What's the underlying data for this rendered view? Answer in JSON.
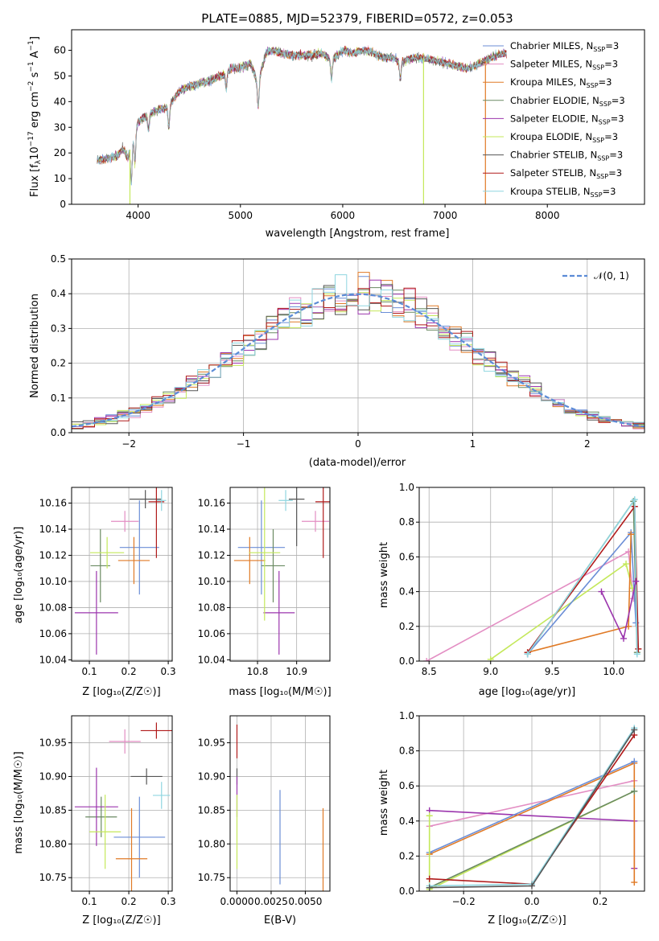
{
  "chart_data": [
    {
      "type": "line",
      "title": "PLATE=0885, MJD=52379, FIBERID=0572, z=0.053",
      "xlabel": "wavelength [Angstrom, rest frame]",
      "ylabel_parts": [
        "Flux [f",
        "λ",
        "10",
        "−17",
        " erg cm",
        "−2",
        " s",
        "−1",
        " A",
        "−1",
        "]"
      ],
      "xlim": [
        3350,
        8950
      ],
      "ylim": [
        0,
        68
      ],
      "xticks": [
        4000,
        5000,
        6000,
        7000,
        8000
      ],
      "yticks": [
        0,
        10,
        20,
        30,
        40,
        50,
        60
      ],
      "grid": false,
      "legend_position": "right",
      "spectrum_range": [
        3600,
        7600
      ],
      "continuum": [
        [
          3600,
          17
        ],
        [
          3700,
          18
        ],
        [
          3800,
          19
        ],
        [
          3850,
          22
        ],
        [
          3900,
          18
        ],
        [
          3960,
          28
        ],
        [
          4000,
          32
        ],
        [
          4100,
          35
        ],
        [
          4200,
          37
        ],
        [
          4300,
          38
        ],
        [
          4400,
          44
        ],
        [
          4500,
          46
        ],
        [
          4600,
          47
        ],
        [
          4700,
          48
        ],
        [
          4800,
          50
        ],
        [
          4860,
          51
        ],
        [
          4900,
          53
        ],
        [
          5000,
          53
        ],
        [
          5100,
          55
        ],
        [
          5170,
          47
        ],
        [
          5250,
          59
        ],
        [
          5300,
          60
        ],
        [
          5400,
          59
        ],
        [
          5500,
          58
        ],
        [
          5600,
          58
        ],
        [
          5700,
          58
        ],
        [
          5800,
          59
        ],
        [
          5890,
          56
        ],
        [
          6000,
          60
        ],
        [
          6100,
          59
        ],
        [
          6200,
          60
        ],
        [
          6300,
          59
        ],
        [
          6400,
          57
        ],
        [
          6500,
          57
        ],
        [
          6560,
          55
        ],
        [
          6600,
          56
        ],
        [
          6700,
          57
        ],
        [
          6800,
          57
        ],
        [
          6900,
          56
        ],
        [
          7000,
          55
        ],
        [
          7100,
          54
        ],
        [
          7200,
          53
        ],
        [
          7300,
          54
        ],
        [
          7400,
          56
        ],
        [
          7500,
          58
        ],
        [
          7600,
          59
        ]
      ],
      "absorptions": [
        [
          3934,
          15
        ],
        [
          3969,
          13
        ],
        [
          4101,
          6
        ],
        [
          4300,
          8
        ],
        [
          4861,
          6
        ],
        [
          5175,
          9
        ],
        [
          5890,
          7
        ],
        [
          6563,
          6
        ]
      ],
      "drops": [
        [
          3920,
          0
        ],
        [
          6790,
          0
        ],
        [
          7395,
          0
        ]
      ],
      "series": [
        {
          "name_parts": [
            "Chabrier MILES, N",
            "SSP",
            "=3"
          ],
          "color": "#6b8ed6"
        },
        {
          "name_parts": [
            "Salpeter MILES, N",
            "SSP",
            "=3"
          ],
          "color": "#e38ec3"
        },
        {
          "name_parts": [
            "Kroupa MILES, N",
            "SSP",
            "=3"
          ],
          "color": "#e07a26"
        },
        {
          "name_parts": [
            "Chabrier ELODIE, N",
            "SSP",
            "=3"
          ],
          "color": "#6a8a62"
        },
        {
          "name_parts": [
            "Salpeter ELODIE, N",
            "SSP",
            "=3"
          ],
          "color": "#9b35ad"
        },
        {
          "name_parts": [
            "Kroupa ELODIE, N",
            "SSP",
            "=3"
          ],
          "color": "#c4e85a"
        },
        {
          "name_parts": [
            "Chabrier STELIB, N",
            "SSP",
            "=3"
          ],
          "color": "#555555"
        },
        {
          "name_parts": [
            "Salpeter STELIB, N",
            "SSP",
            "=3"
          ],
          "color": "#b01a1a"
        },
        {
          "name_parts": [
            "Kroupa STELIB, N",
            "SSP",
            "=3"
          ],
          "color": "#8fd6e0"
        }
      ]
    },
    {
      "type": "histogram",
      "xlabel": "(data-model)/error",
      "ylabel": "Normed distribution",
      "xlim": [
        -2.5,
        2.5
      ],
      "ylim": [
        0,
        0.5
      ],
      "xticks": [
        -2,
        -1,
        0,
        1,
        2
      ],
      "xtick_labels": [
        "−2",
        "−1",
        "0",
        "1",
        "2"
      ],
      "yticks": [
        0,
        0.1,
        0.2,
        0.3,
        0.4,
        0.5
      ],
      "ytick_labels": [
        "0.0",
        "0.1",
        "0.2",
        "0.3",
        "0.4",
        "0.5"
      ],
      "grid": true,
      "bin_width": 0.1,
      "reference_label": "𝒩(0, 1)",
      "reference_color": "#5b8bd6",
      "legend_position": "top-right"
    },
    {
      "type": "scatter",
      "xlabel": "Z [log₁₀(Z/Z☉)]",
      "ylabel": "age  [log₁₀(age/yr)]",
      "xlim": [
        0.055,
        0.31
      ],
      "ylim": [
        10.039,
        10.172
      ],
      "xticks": [
        0.1,
        0.2,
        0.3
      ],
      "xtick_labels": [
        "0.1",
        "0.2",
        "0.3"
      ],
      "yticks": [
        10.04,
        10.06,
        10.08,
        10.1,
        10.12,
        10.14,
        10.16
      ],
      "ytick_labels": [
        "10.04",
        "10.06",
        "10.08",
        "10.10",
        "10.12",
        "10.14",
        "10.16"
      ],
      "grid": true,
      "points": [
        {
          "x": 0.227,
          "y": 10.126,
          "xe": 0.05,
          "ye": 0.036,
          "color": "#6b8ed6"
        },
        {
          "x": 0.19,
          "y": 10.146,
          "xe": 0.035,
          "ye": 0.008,
          "color": "#e38ec3"
        },
        {
          "x": 0.213,
          "y": 10.116,
          "xe": 0.04,
          "ye": 0.018,
          "color": "#e07a26"
        },
        {
          "x": 0.128,
          "y": 10.112,
          "xe": 0.025,
          "ye": 0.028,
          "color": "#6a8a62"
        },
        {
          "x": 0.118,
          "y": 10.076,
          "xe": 0.055,
          "ye": 0.032,
          "color": "#9b35ad"
        },
        {
          "x": 0.145,
          "y": 10.122,
          "xe": 0.043,
          "ye": 0.012,
          "color": "#c4e85a"
        },
        {
          "x": 0.242,
          "y": 10.163,
          "xe": 0.04,
          "ye": 0.007,
          "color": "#555555"
        },
        {
          "x": 0.27,
          "y": 10.161,
          "xe": 0.02,
          "ye": 0.043,
          "color": "#b01a1a"
        },
        {
          "x": 0.283,
          "y": 10.162,
          "xe": 0.012,
          "ye": 0.008,
          "color": "#8fd6e0"
        }
      ]
    },
    {
      "type": "scatter",
      "xlabel": "mass [log₁₀(M/M☉)]",
      "xlim": [
        10.73,
        10.985
      ],
      "ylim": [
        10.039,
        10.172
      ],
      "xticks": [
        10.8,
        10.9
      ],
      "xtick_labels": [
        "10.8",
        "10.9"
      ],
      "yticks": [
        10.04,
        10.06,
        10.08,
        10.1,
        10.12,
        10.14,
        10.16
      ],
      "ytick_labels": [
        "10.04",
        "10.06",
        "10.08",
        "10.10",
        "10.12",
        "10.14",
        "10.16"
      ],
      "grid": true,
      "points": [
        {
          "x": 10.81,
          "y": 10.126,
          "xe": 0.06,
          "ye": 0.036,
          "color": "#6b8ed6"
        },
        {
          "x": 10.948,
          "y": 10.146,
          "xe": 0.035,
          "ye": 0.008,
          "color": "#e38ec3"
        },
        {
          "x": 10.78,
          "y": 10.116,
          "xe": 0.04,
          "ye": 0.018,
          "color": "#e07a26"
        },
        {
          "x": 10.84,
          "y": 10.112,
          "xe": 0.03,
          "ye": 0.028,
          "color": "#6a8a62"
        },
        {
          "x": 10.855,
          "y": 10.076,
          "xe": 0.04,
          "ye": 0.032,
          "color": "#9b35ad"
        },
        {
          "x": 10.818,
          "y": 10.122,
          "xe": 0.04,
          "ye": 0.052,
          "color": "#c4e85a"
        },
        {
          "x": 10.9,
          "y": 10.163,
          "xe": 0.02,
          "ye": 0.036,
          "color": "#555555"
        },
        {
          "x": 10.968,
          "y": 10.161,
          "xe": 0.02,
          "ye": 0.043,
          "color": "#b01a1a"
        },
        {
          "x": 10.872,
          "y": 10.162,
          "xe": 0.018,
          "ye": 0.008,
          "color": "#8fd6e0"
        }
      ]
    },
    {
      "type": "line",
      "xlabel": "age  [log₁₀(age/yr)]",
      "ylabel": "mass weight",
      "xlim": [
        8.42,
        10.25
      ],
      "ylim": [
        0,
        1
      ],
      "xticks": [
        8.5,
        9.0,
        9.5,
        10.0
      ],
      "xtick_labels": [
        "8.5",
        "9.0",
        "9.5",
        "10.0"
      ],
      "yticks": [
        0,
        0.2,
        0.4,
        0.6,
        0.8,
        1.0
      ],
      "ytick_labels": [
        "0.0",
        "0.2",
        "0.4",
        "0.6",
        "0.8",
        "1.0"
      ],
      "grid": true,
      "series": [
        {
          "color": "#e38ec3",
          "points": [
            [
              8.48,
              0
            ],
            [
              10.12,
              0.63
            ],
            [
              10.16,
              0.36
            ]
          ]
        },
        {
          "color": "#c4e85a",
          "points": [
            [
              9.0,
              0.01
            ],
            [
              10.1,
              0.56
            ],
            [
              10.15,
              0.42
            ]
          ]
        },
        {
          "color": "#6a8a62",
          "points": [
            [
              9.3,
              0.04
            ],
            [
              10.16,
              0.92
            ],
            [
              10.19,
              0.05
            ]
          ]
        },
        {
          "color": "#6b8ed6",
          "points": [
            [
              9.3,
              0.04
            ],
            [
              10.14,
              0.74
            ],
            [
              10.18,
              0.22
            ]
          ]
        },
        {
          "color": "#e07a26",
          "points": [
            [
              9.3,
              0.05
            ],
            [
              10.12,
              0.2
            ],
            [
              10.14,
              0.73
            ]
          ]
        },
        {
          "color": "#b01a1a",
          "points": [
            [
              9.3,
              0.05
            ],
            [
              10.17,
              0.89
            ],
            [
              10.2,
              0.07
            ]
          ]
        },
        {
          "color": "#8fd6e0",
          "points": [
            [
              9.3,
              0.04
            ],
            [
              10.17,
              0.93
            ],
            [
              10.19,
              0.04
            ]
          ]
        },
        {
          "color": "#9b35ad",
          "points": [
            [
              9.9,
              0.4
            ],
            [
              10.08,
              0.13
            ],
            [
              10.18,
              0.46
            ]
          ]
        }
      ]
    },
    {
      "type": "scatter",
      "xlabel": "Z [log₁₀(Z/Z☉)]",
      "ylabel": "mass [log₁₀(M/M☉)]",
      "xlim": [
        0.055,
        0.31
      ],
      "ylim": [
        10.73,
        10.99
      ],
      "xticks": [
        0.1,
        0.2,
        0.3
      ],
      "xtick_labels": [
        "0.1",
        "0.2",
        "0.3"
      ],
      "yticks": [
        10.75,
        10.8,
        10.85,
        10.9,
        10.95
      ],
      "ytick_labels": [
        "10.75",
        "10.80",
        "10.85",
        "10.90",
        "10.95"
      ],
      "grid": true,
      "points": [
        {
          "x": 0.227,
          "y": 10.81,
          "xe": 0.065,
          "ye": 0.06,
          "color": "#6b8ed6"
        },
        {
          "x": 0.19,
          "y": 10.952,
          "xe": 0.04,
          "ye": 0.018,
          "color": "#e38ec3"
        },
        {
          "x": 0.207,
          "y": 10.778,
          "xe": 0.04,
          "ye": 0.075,
          "color": "#e07a26"
        },
        {
          "x": 0.13,
          "y": 10.84,
          "xe": 0.04,
          "ye": 0.03,
          "color": "#6a8a62"
        },
        {
          "x": 0.118,
          "y": 10.855,
          "xe": 0.055,
          "ye": 0.058,
          "color": "#9b35ad"
        },
        {
          "x": 0.14,
          "y": 10.818,
          "xe": 0.04,
          "ye": 0.055,
          "color": "#c4e85a"
        },
        {
          "x": 0.245,
          "y": 10.9,
          "xe": 0.04,
          "ye": 0.012,
          "color": "#555555"
        },
        {
          "x": 0.27,
          "y": 10.968,
          "xe": 0.04,
          "ye": 0.012,
          "color": "#b01a1a"
        },
        {
          "x": 0.283,
          "y": 10.872,
          "xe": 0.022,
          "ye": 0.02,
          "color": "#8fd6e0"
        }
      ]
    },
    {
      "type": "scatter",
      "xlabel": "E(B-V)",
      "xlim": [
        -0.0005,
        0.0068
      ],
      "ylim": [
        10.73,
        10.99
      ],
      "xticks": [
        0,
        0.0025,
        0.005
      ],
      "xtick_labels": [
        "0.0000",
        "0.0025",
        "0.0050"
      ],
      "yticks": [
        10.75,
        10.8,
        10.85,
        10.9,
        10.95
      ],
      "ytick_labels": [
        "10.75",
        "10.80",
        "10.85",
        "10.90",
        "10.95"
      ],
      "grid": true,
      "points": [
        {
          "x": 0.00315,
          "y": 10.81,
          "xe": 0,
          "ye": 0.07,
          "color": "#6b8ed6"
        },
        {
          "x": 0.0063,
          "y": 10.778,
          "xe": 0,
          "ye": 0.075,
          "color": "#e07a26"
        },
        {
          "x": 0.0,
          "y": 10.952,
          "xe": 0,
          "ye": 0.025,
          "color": "#b01a1a"
        },
        {
          "x": 0.0,
          "y": 10.9,
          "xe": 0,
          "ye": 0.012,
          "color": "#555555"
        },
        {
          "x": 0.0,
          "y": 10.87,
          "xe": 0,
          "ye": 0.03,
          "color": "#9b35ad"
        },
        {
          "x": 0.0,
          "y": 10.818,
          "xe": 0,
          "ye": 0.055,
          "color": "#c4e85a"
        }
      ]
    },
    {
      "type": "line",
      "xlabel": "Z [log₁₀(Z/Z☉)]",
      "ylabel": "mass weight",
      "xlim": [
        -0.33,
        0.33
      ],
      "ylim": [
        0,
        1
      ],
      "xticks": [
        -0.2,
        0,
        0.2
      ],
      "xtick_labels": [
        "−0.2",
        "0.0",
        "0.2"
      ],
      "yticks": [
        0,
        0.2,
        0.4,
        0.6,
        0.8,
        1.0
      ],
      "ytick_labels": [
        "0.0",
        "0.2",
        "0.4",
        "0.6",
        "0.8",
        "1.0"
      ],
      "grid": true,
      "series": [
        {
          "color": "#e38ec3",
          "points": [
            [
              -0.3,
              0.37
            ],
            [
              0.3,
              0.63
            ]
          ]
        },
        {
          "color": "#9b35ad",
          "points": [
            [
              -0.3,
              0.46
            ],
            [
              0.3,
              0.4
            ],
            [
              0.3,
              0.13
            ]
          ]
        },
        {
          "color": "#e07a26",
          "points": [
            [
              -0.3,
              0.21
            ],
            [
              0.3,
              0.73
            ],
            [
              0.3,
              0.05
            ]
          ]
        },
        {
          "color": "#6b8ed6",
          "points": [
            [
              -0.3,
              0.22
            ],
            [
              0.3,
              0.74
            ]
          ]
        },
        {
          "color": "#c4e85a",
          "points": [
            [
              -0.3,
              0.43
            ],
            [
              -0.3,
              0.01
            ],
            [
              0.3,
              0.57
            ]
          ]
        },
        {
          "color": "#6a8a62",
          "points": [
            [
              -0.3,
              0.02
            ],
            [
              0.3,
              0.57
            ]
          ]
        },
        {
          "color": "#b01a1a",
          "points": [
            [
              -0.3,
              0.07
            ],
            [
              0.0,
              0.04
            ],
            [
              0.3,
              0.89
            ]
          ]
        },
        {
          "color": "#8fd6e0",
          "points": [
            [
              -0.3,
              0.03
            ],
            [
              0.0,
              0.04
            ],
            [
              0.3,
              0.93
            ]
          ]
        },
        {
          "color": "#555555",
          "points": [
            [
              -0.3,
              0.02
            ],
            [
              0.0,
              0.03
            ],
            [
              0.3,
              0.92
            ]
          ]
        }
      ]
    }
  ]
}
